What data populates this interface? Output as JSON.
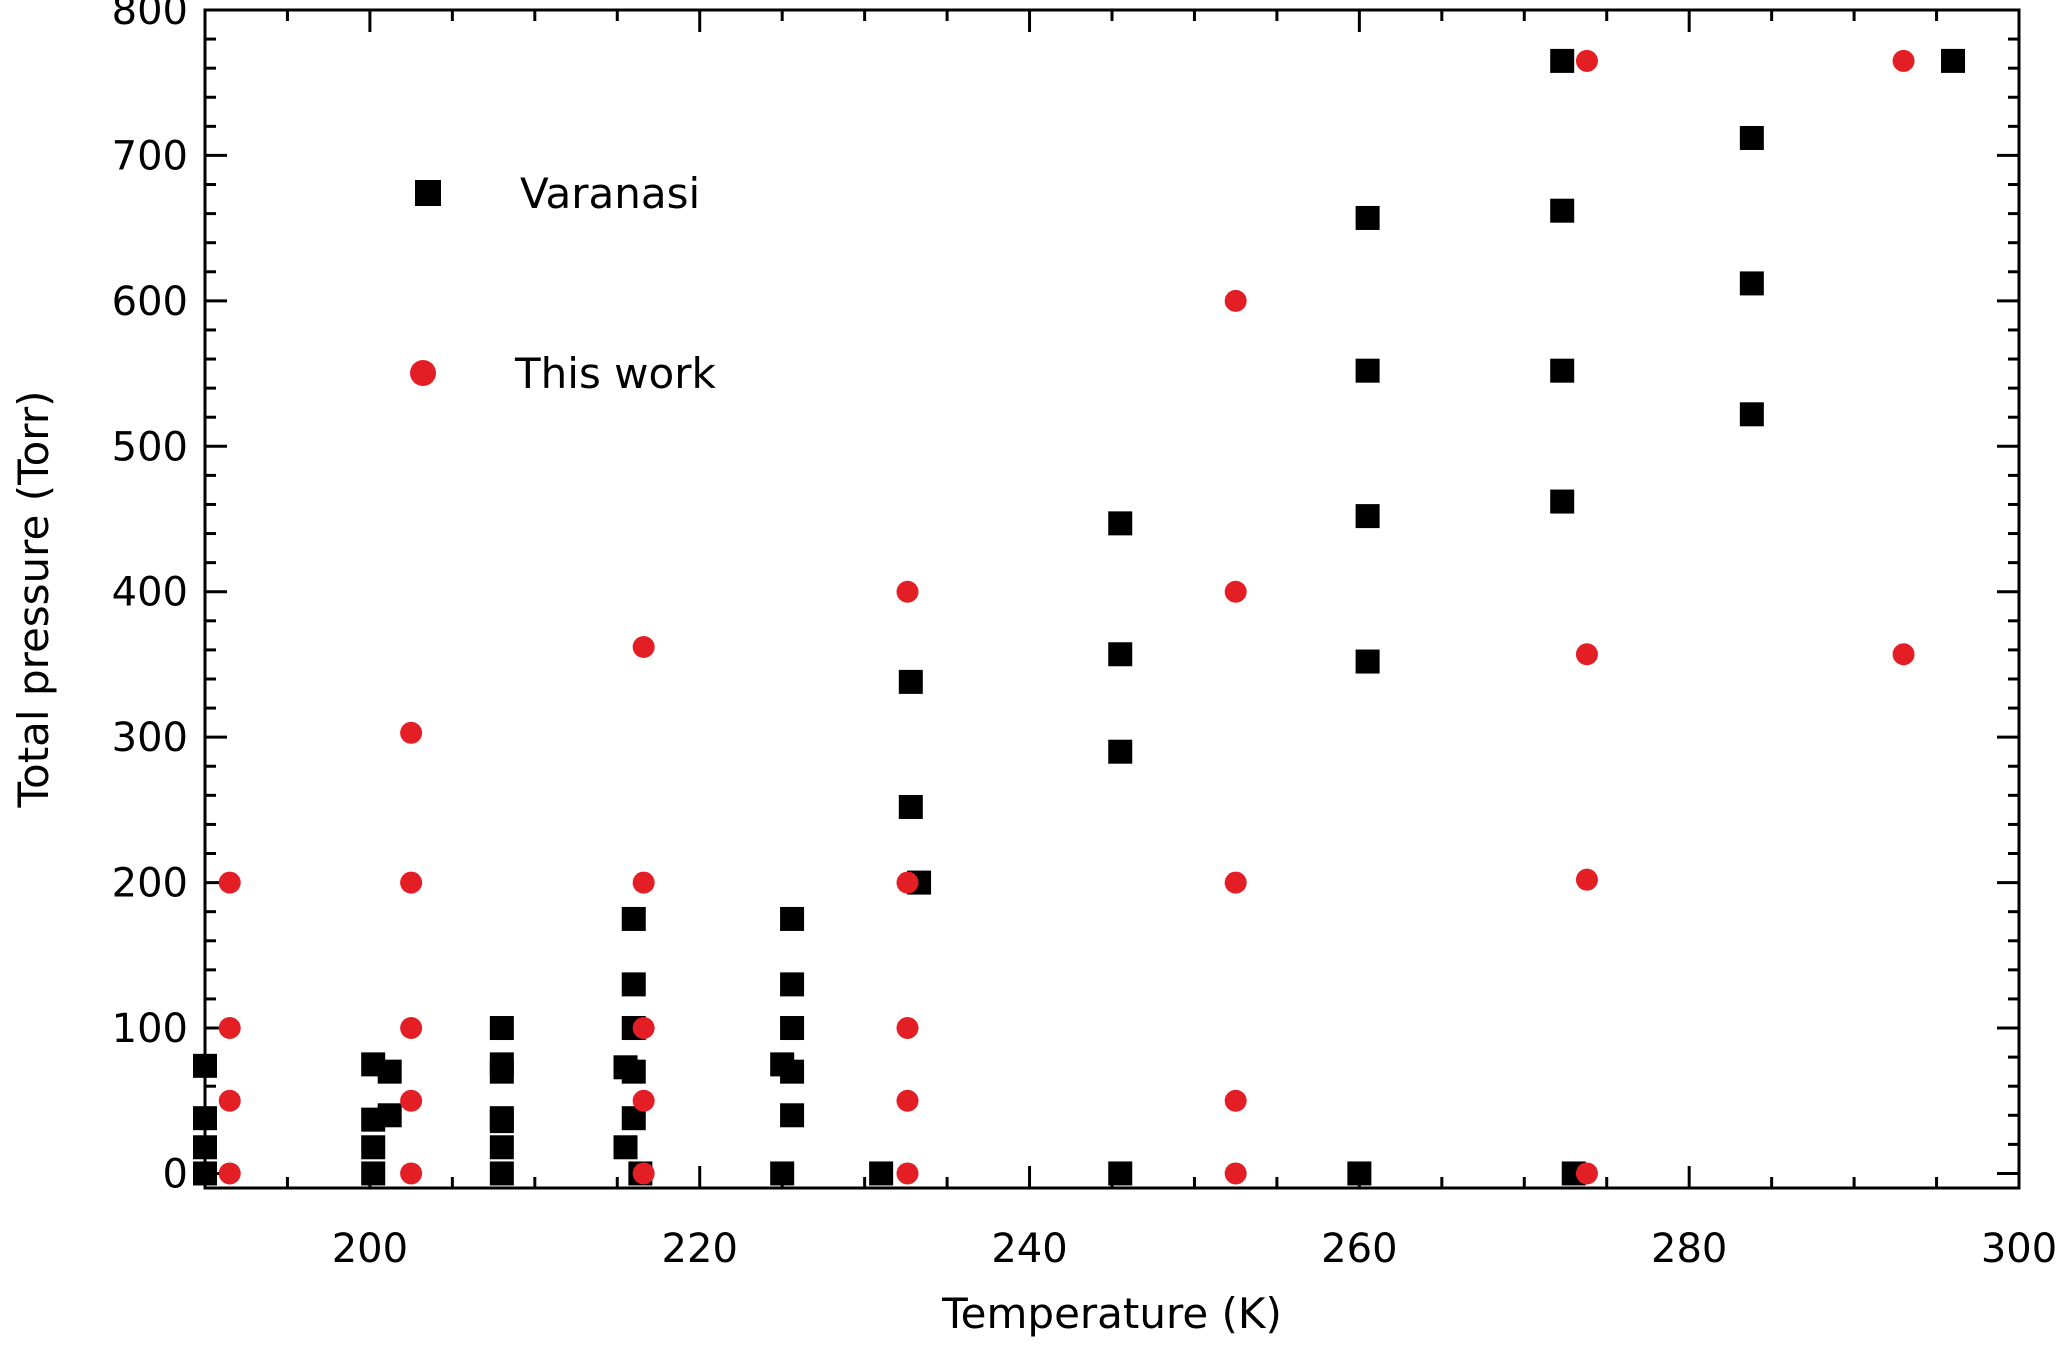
{
  "chart_data": {
    "type": "scatter",
    "title": "",
    "xlabel": "Temperature (K)",
    "ylabel": "Total pressure (Torr)",
    "xlim": [
      190,
      300
    ],
    "ylim": [
      -10,
      800
    ],
    "xticks": [
      200,
      220,
      240,
      260,
      280,
      300
    ],
    "yticks": [
      0,
      100,
      200,
      300,
      400,
      500,
      600,
      700,
      800
    ],
    "grid": false,
    "legend": {
      "position": "top-left"
    },
    "series": [
      {
        "name": "Varanasi",
        "marker": "square",
        "color": "#000000",
        "points": [
          [
            190,
            74
          ],
          [
            190,
            38
          ],
          [
            190,
            18
          ],
          [
            190,
            0
          ],
          [
            200.2,
            75
          ],
          [
            200.2,
            37
          ],
          [
            200.2,
            18
          ],
          [
            200.2,
            0
          ],
          [
            201.2,
            70
          ],
          [
            201.2,
            40
          ],
          [
            208,
            100
          ],
          [
            208,
            75
          ],
          [
            208,
            70
          ],
          [
            208,
            38
          ],
          [
            208,
            36
          ],
          [
            208,
            18
          ],
          [
            208,
            0
          ],
          [
            215.5,
            73
          ],
          [
            215.5,
            18
          ],
          [
            216,
            175
          ],
          [
            216,
            130
          ],
          [
            216,
            100
          ],
          [
            216,
            70
          ],
          [
            216,
            38
          ],
          [
            216.4,
            0
          ],
          [
            225,
            75
          ],
          [
            225,
            0
          ],
          [
            225.6,
            175
          ],
          [
            225.6,
            130
          ],
          [
            225.6,
            100
          ],
          [
            225.6,
            70
          ],
          [
            225.6,
            40
          ],
          [
            231,
            0
          ],
          [
            232.8,
            338
          ],
          [
            232.8,
            252
          ],
          [
            233.3,
            200
          ],
          [
            245.5,
            447
          ],
          [
            245.5,
            357
          ],
          [
            245.5,
            290
          ],
          [
            245.5,
            0
          ],
          [
            260.5,
            657
          ],
          [
            260.5,
            552
          ],
          [
            260.5,
            452
          ],
          [
            260.5,
            352
          ],
          [
            260,
            0
          ],
          [
            272.3,
            765
          ],
          [
            272.3,
            662
          ],
          [
            272.3,
            552
          ],
          [
            272.3,
            462
          ],
          [
            273,
            0
          ],
          [
            283.8,
            712
          ],
          [
            283.8,
            612
          ],
          [
            283.8,
            522
          ],
          [
            296,
            765
          ]
        ]
      },
      {
        "name": "This work",
        "marker": "circle",
        "color": "#e31e24",
        "points": [
          [
            191.5,
            200
          ],
          [
            191.5,
            100
          ],
          [
            191.5,
            50
          ],
          [
            191.5,
            0
          ],
          [
            202.5,
            303
          ],
          [
            202.5,
            200
          ],
          [
            202.5,
            100
          ],
          [
            202.5,
            50
          ],
          [
            202.5,
            0
          ],
          [
            216.6,
            362
          ],
          [
            216.6,
            200
          ],
          [
            216.6,
            100
          ],
          [
            216.6,
            50
          ],
          [
            216.6,
            0
          ],
          [
            232.6,
            400
          ],
          [
            232.6,
            200
          ],
          [
            232.6,
            100
          ],
          [
            232.6,
            50
          ],
          [
            232.6,
            0
          ],
          [
            252.5,
            600
          ],
          [
            252.5,
            400
          ],
          [
            252.5,
            200
          ],
          [
            252.5,
            50
          ],
          [
            252.5,
            0
          ],
          [
            273.8,
            765
          ],
          [
            273.8,
            357
          ],
          [
            273.8,
            202
          ],
          [
            273.8,
            0
          ],
          [
            293,
            765
          ],
          [
            293,
            357
          ]
        ]
      }
    ]
  }
}
